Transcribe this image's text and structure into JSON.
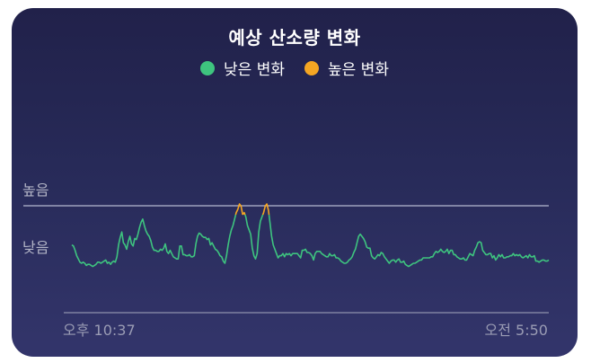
{
  "title": "예상 산소량 변화",
  "legend": [
    {
      "label": "낮은 변화",
      "color": "#3ec47f"
    },
    {
      "label": "높은 변화",
      "color": "#f5a623"
    }
  ],
  "chart_data": {
    "type": "line",
    "title": "예상 산소량 변화",
    "y_tick_labels": [
      "낮음",
      "높음"
    ],
    "x_tick_labels": [
      "오후 10:37",
      "오전 5:50"
    ],
    "threshold_label": "높음",
    "ylim": [
      0,
      100
    ],
    "threshold": 50,
    "colors": {
      "low": "#3ec47f",
      "high": "#f5a623",
      "threshold_line": "#9ea2bd",
      "baseline": "#8e92ad"
    },
    "series": [
      {
        "name": "낮은 변화",
        "values": [
          22,
          21,
          17,
          12,
          9,
          6,
          5,
          6,
          5,
          3,
          4,
          4,
          3,
          2,
          3,
          4,
          6,
          6,
          5,
          6,
          7,
          8,
          5,
          6,
          4,
          6,
          7,
          6,
          11,
          22,
          29,
          34,
          24,
          22,
          18,
          25,
          30,
          23,
          21,
          28,
          27,
          32,
          38,
          43,
          46,
          40,
          35,
          32,
          30,
          26,
          20,
          17,
          17,
          16,
          16,
          18,
          17,
          19,
          23,
          16,
          14,
          17,
          14,
          11,
          10,
          9,
          9,
          21,
          21,
          13,
          13,
          12,
          12,
          13,
          11,
          11,
          12,
          23,
          30,
          33,
          32,
          30,
          29,
          29,
          27,
          28,
          22,
          24,
          21,
          18,
          17,
          15,
          12,
          11,
          7,
          5,
          12,
          22,
          30,
          36,
          40,
          46,
          52,
          55,
          60,
          58,
          50,
          52,
          48,
          40,
          36,
          32,
          19,
          12,
          9,
          14,
          34,
          44,
          48,
          52,
          58,
          60,
          54,
          42,
          30,
          22,
          18,
          14,
          10,
          12,
          12,
          14,
          11,
          14,
          13,
          14,
          12,
          14,
          14,
          14,
          14,
          12,
          10,
          17,
          17,
          18,
          15,
          15,
          14,
          12,
          8,
          14,
          16,
          16,
          16,
          14,
          13,
          12,
          11,
          11,
          14,
          12,
          12,
          13,
          10,
          10,
          9,
          7,
          6,
          5,
          5,
          6,
          8,
          9,
          11,
          15,
          18,
          24,
          30,
          32,
          30,
          28,
          25,
          20,
          19,
          19,
          12,
          10,
          9,
          11,
          13,
          12,
          15,
          14,
          11,
          9,
          7,
          5,
          7,
          8,
          8,
          6,
          8,
          9,
          6,
          6,
          7,
          4,
          3,
          2,
          3,
          4,
          5,
          5,
          6,
          7,
          8,
          8,
          10,
          10,
          10,
          10,
          10,
          11,
          11,
          14,
          16,
          15,
          16,
          18,
          16,
          15,
          16,
          18,
          14,
          17,
          17,
          13,
          13,
          11,
          10,
          9,
          9,
          10,
          8,
          8,
          11,
          14,
          13,
          12,
          17,
          20,
          24,
          25,
          24,
          17,
          15,
          13,
          13,
          14,
          14,
          10,
          12,
          8,
          10,
          13,
          11,
          13,
          10,
          10,
          11,
          11,
          12,
          12,
          14,
          12,
          13,
          12,
          13,
          11,
          10,
          11,
          12,
          10,
          13,
          11,
          11,
          12,
          7,
          7,
          6,
          7,
          8,
          8,
          7,
          7,
          8
        ]
      }
    ]
  }
}
